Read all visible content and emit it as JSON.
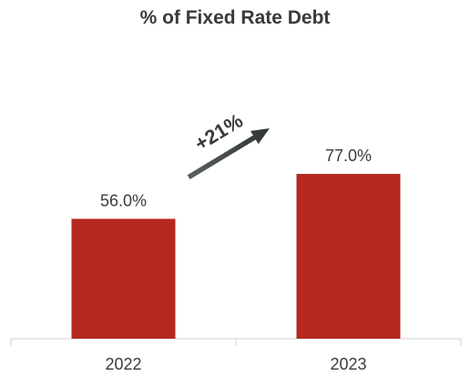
{
  "chart_data": {
    "type": "bar",
    "title": "% of Fixed Rate Debt",
    "categories": [
      "2022",
      "2023"
    ],
    "values": [
      56.0,
      77.0
    ],
    "value_labels": [
      "56.0%",
      "77.0%"
    ],
    "ylim": [
      0,
      100
    ],
    "grid": false,
    "legend": "none",
    "annotations": [
      {
        "text": "+21%",
        "type": "arrow",
        "from": "2022",
        "to": "2023"
      }
    ],
    "colors": {
      "bar": "#b5271f",
      "arrow": "#3f4444",
      "axis": "#d0d0d0",
      "text": "#3a3a3a"
    }
  }
}
